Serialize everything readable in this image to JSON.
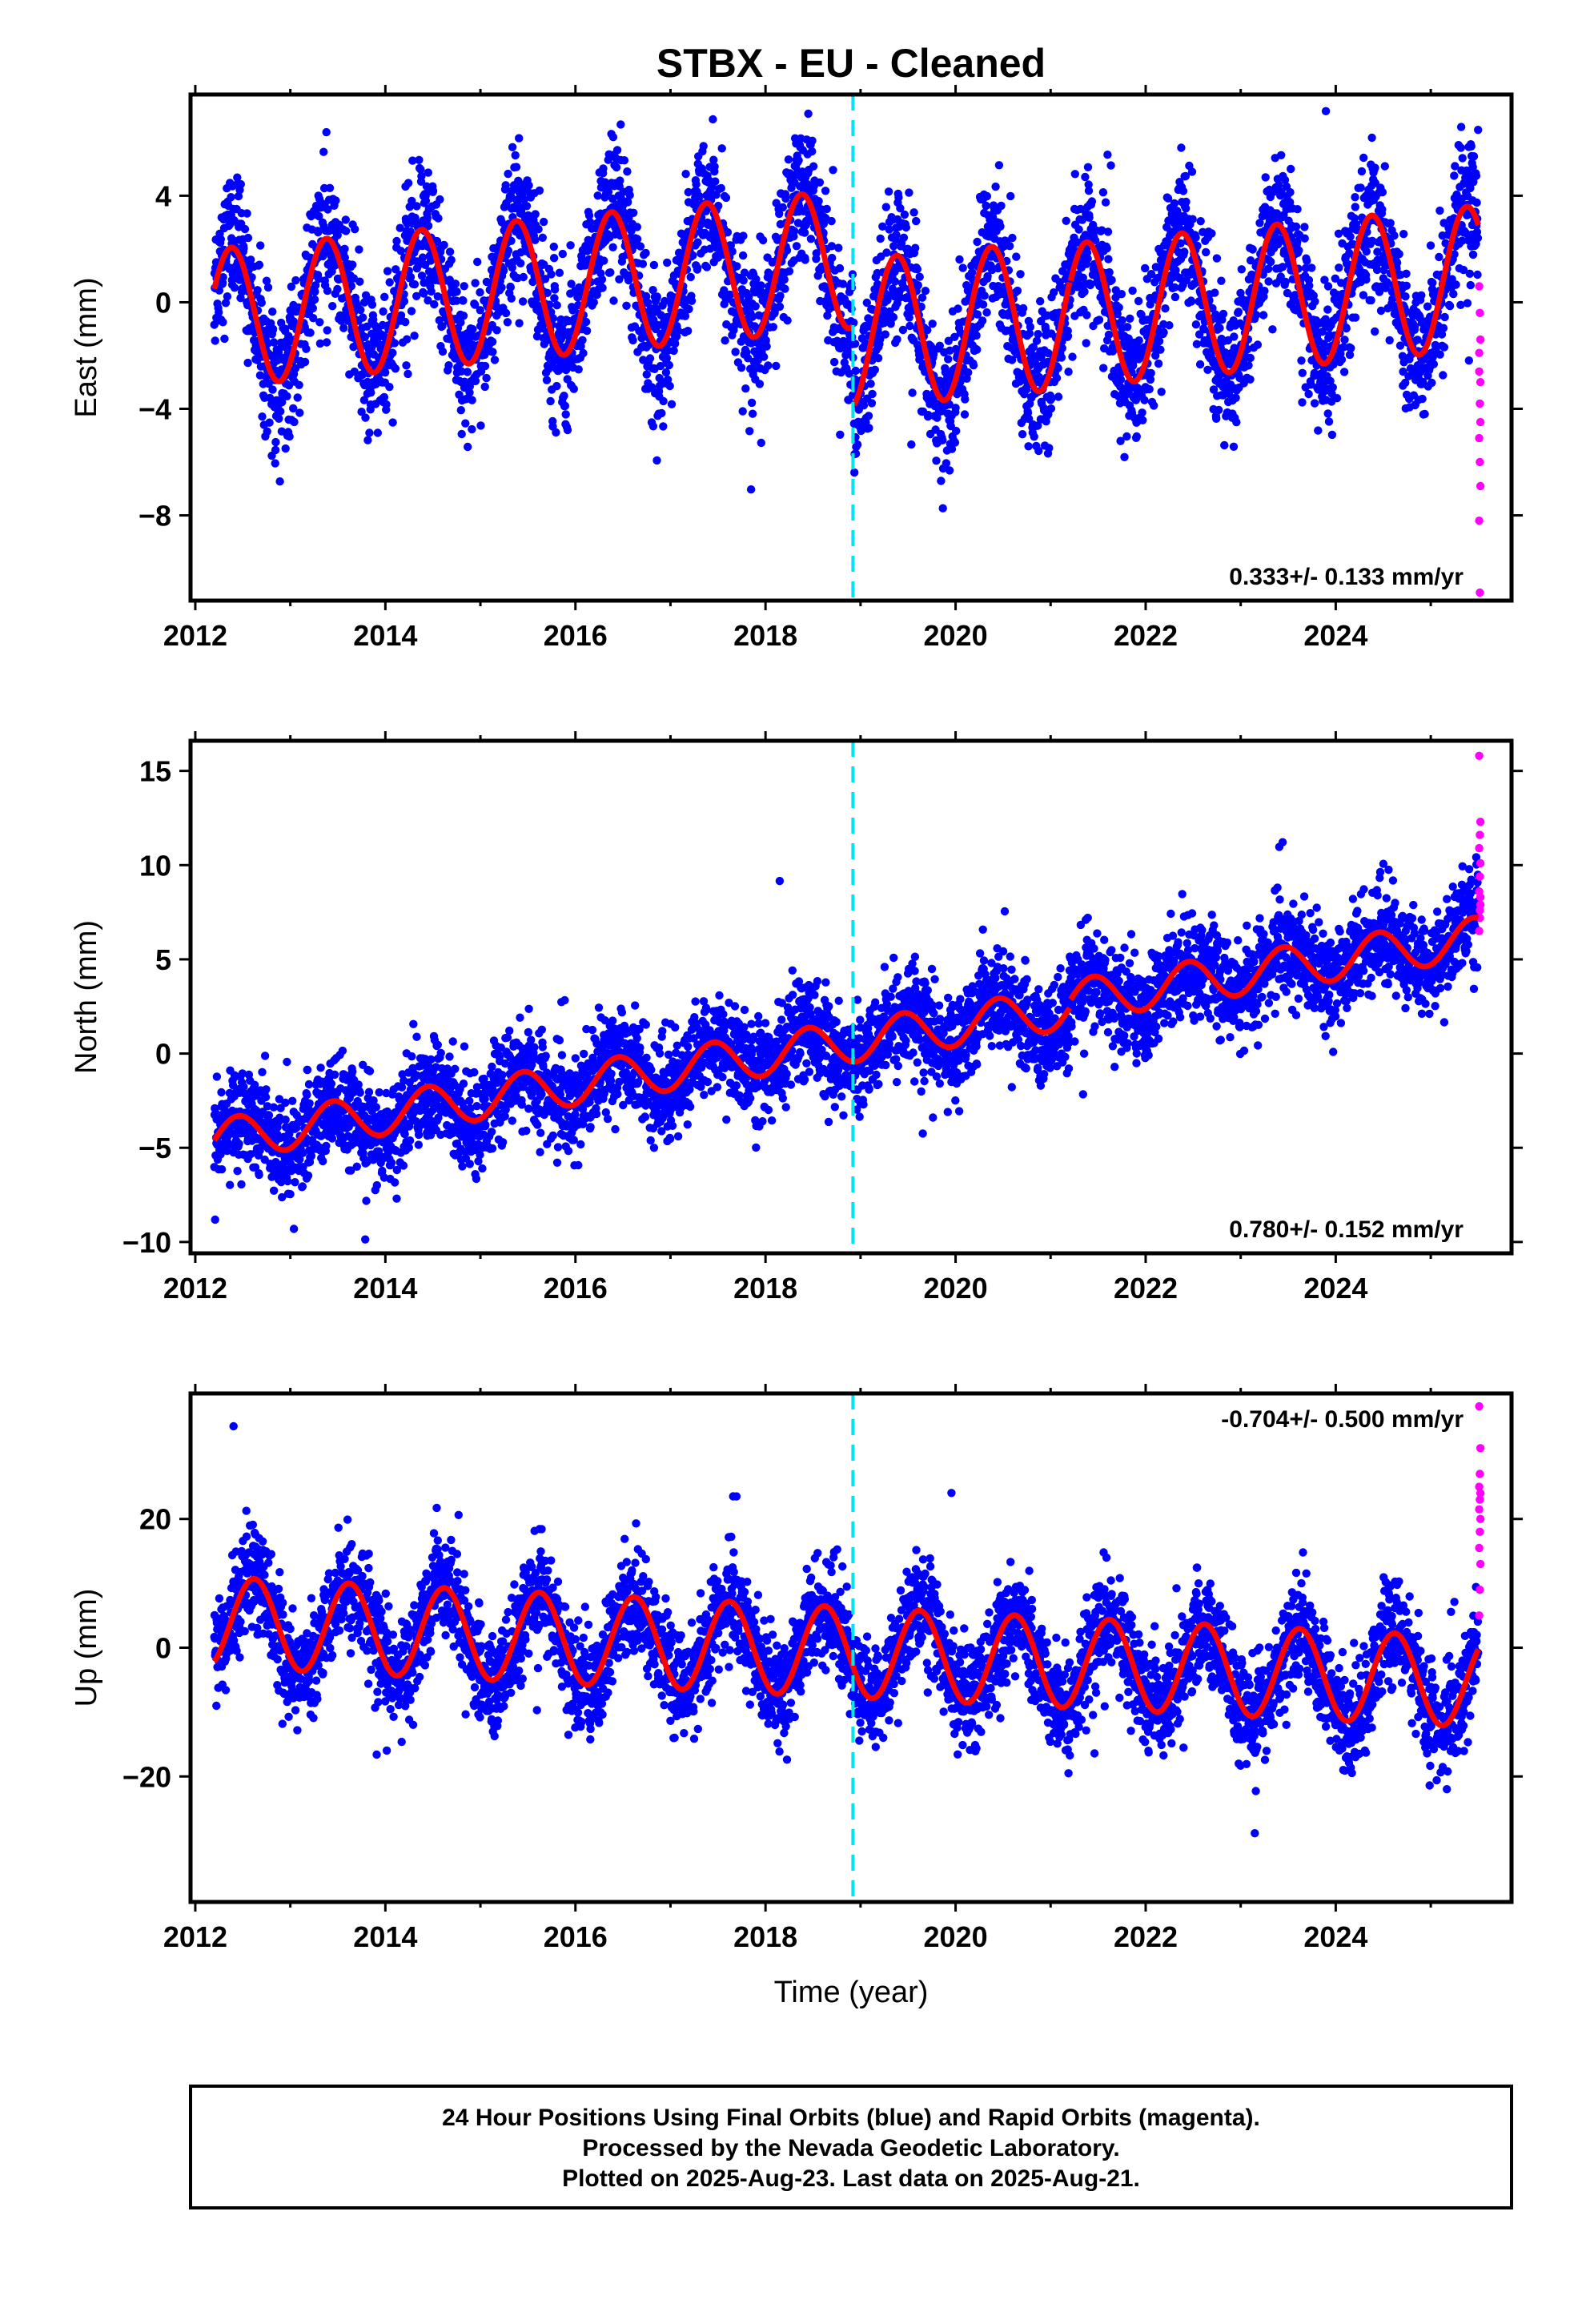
{
  "figure": {
    "title": "STBX  - EU - Cleaned",
    "xlabel": "Time (year)",
    "footer": [
      "24 Hour Positions Using Final Orbits (blue) and Rapid Orbits (magenta).",
      "Processed by the Nevada Geodetic Laboratory.",
      "Plotted on 2025-Aug-23. Last data on 2025-Aug-21."
    ],
    "colors": {
      "final": "#0000ff",
      "rapid": "#ff00ff",
      "model": "#ff0000",
      "event": "#00e5ee"
    }
  },
  "chart_data": [
    {
      "type": "scatter",
      "component": "East",
      "ylabel": "East (mm)",
      "rate": "0.333+/- 0.133 mm/yr",
      "rate_position": "bottom-right",
      "xlim": [
        2011.95,
        2025.85
      ],
      "ylim": [
        -11.2,
        7.8
      ],
      "x_ticks": [
        2012,
        2014,
        2016,
        2018,
        2020,
        2022,
        2024
      ],
      "y_ticks": [
        4,
        0,
        -4,
        -8
      ],
      "y_tick_labels": [
        "4",
        "0",
        "−4",
        "−8"
      ],
      "event_line_x": 2018.92,
      "data_start": 2012.2,
      "data_end": 2025.5,
      "model": {
        "segments": [
          {
            "from": 2012.2,
            "to": 2018.92,
            "offset": -0.6,
            "trend": 0.333,
            "amplitude": 2.6,
            "peak_year": 2012.38
          },
          {
            "from": 2018.92,
            "to": 2021.2,
            "offset": -1.2,
            "trend": 0.333,
            "amplitude": 2.8,
            "peak_year": 2019.38
          },
          {
            "from": 2021.2,
            "to": 2025.5,
            "offset": -0.5,
            "trend": 0.333,
            "amplitude": 2.7,
            "peak_year": 2021.38
          }
        ],
        "end_values": {
          "start": 0.4,
          "end": 1.2
        }
      },
      "approx_scatter_std": 1.3,
      "rapid_points": [
        0.6,
        -0.4,
        -1.4,
        -2.6,
        -3.8,
        -4.5,
        -5.1,
        -6.0,
        -6.9,
        -8.2,
        -10.9,
        -3.0,
        -1.9
      ]
    },
    {
      "type": "scatter",
      "component": "North",
      "ylabel": "North (mm)",
      "rate": "0.780+/- 0.152 mm/yr",
      "rate_position": "bottom-right",
      "xlim": [
        2011.95,
        2025.85
      ],
      "ylim": [
        -10.6,
        16.6
      ],
      "x_ticks": [
        2012,
        2014,
        2016,
        2018,
        2020,
        2022,
        2024
      ],
      "y_ticks": [
        15,
        10,
        5,
        0,
        -5,
        -10
      ],
      "y_tick_labels": [
        "15",
        "10",
        "5",
        "0",
        "−5",
        "−10"
      ],
      "event_line_x": 2018.92,
      "data_start": 2012.2,
      "data_end": 2025.5,
      "model": {
        "segments": [
          {
            "from": 2012.2,
            "to": 2021.2,
            "offset": -4.6,
            "trend": 0.78,
            "amplitude": 1.1,
            "peak_year": 2012.45
          },
          {
            "from": 2021.2,
            "to": 2025.5,
            "offset": 2.8,
            "trend": 0.78,
            "amplitude": 1.1,
            "peak_year": 2021.45
          }
        ],
        "end_values": {
          "start": -5.6,
          "end": 7.0
        }
      },
      "approx_scatter_std": 1.3,
      "rapid_points": [
        6.5,
        7.2,
        7.9,
        8.6,
        9.4,
        10.1,
        10.9,
        11.6,
        12.3,
        15.8,
        7.6,
        8.3
      ]
    },
    {
      "type": "scatter",
      "component": "Up",
      "ylabel": "Up (mm)",
      "rate": "-0.704+/- 0.500 mm/yr",
      "rate_position": "top-right",
      "xlim": [
        2011.95,
        2025.85
      ],
      "ylim": [
        -39.5,
        39.5
      ],
      "x_ticks": [
        2012,
        2014,
        2016,
        2018,
        2020,
        2022,
        2024
      ],
      "y_ticks": [
        20,
        0,
        -20
      ],
      "y_tick_labels": [
        "20",
        "0",
        "−20"
      ],
      "event_line_x": 2018.92,
      "data_start": 2012.2,
      "data_end": 2025.5,
      "model": {
        "segments": [
          {
            "from": 2012.2,
            "to": 2025.5,
            "offset": 4.0,
            "trend": -0.704,
            "amplitude": 7.0,
            "peak_year": 2012.62
          }
        ],
        "end_values": {
          "start": -1.0,
          "end": 5.0
        }
      },
      "approx_scatter_std": 4.0,
      "rapid_points": [
        5.0,
        9.0,
        13.0,
        15.5,
        18.0,
        20.0,
        21.5,
        23.0,
        24.0,
        25.0,
        27.0,
        31.0,
        37.5
      ]
    }
  ]
}
